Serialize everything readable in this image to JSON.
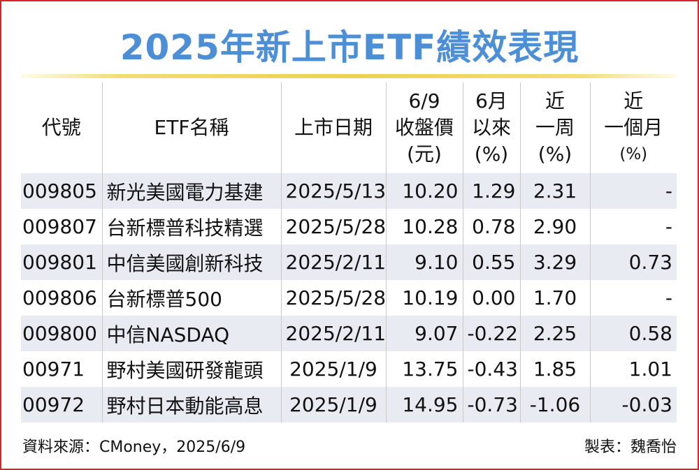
{
  "title": "2025年新上市ETF績效表現",
  "headers": [
    {
      "lines": [
        "代號"
      ]
    },
    {
      "lines": [
        "ETF名稱"
      ]
    },
    {
      "lines": [
        "上市日期"
      ]
    },
    {
      "lines": [
        "6/9",
        "收盤價",
        "(元)"
      ]
    },
    {
      "lines": [
        "6月",
        "以來",
        "(%)"
      ]
    },
    {
      "lines": [
        "近",
        "一周",
        "(%)"
      ]
    },
    {
      "lines": [
        "近",
        "一個月",
        "(%)"
      ]
    }
  ],
  "rows": [
    {
      "code": "009805",
      "name": "新光美國電力基建",
      "date": "2025/5/13",
      "close": "10.20",
      "since_june": "1.29",
      "week": "2.31",
      "month": "-"
    },
    {
      "code": "009807",
      "name": "台新標普科技精選",
      "date": "2025/5/28",
      "close": "10.28",
      "since_june": "0.78",
      "week": "2.90",
      "month": "-"
    },
    {
      "code": "009801",
      "name": "中信美國創新科技",
      "date": "2025/2/11",
      "close": "9.10",
      "since_june": "0.55",
      "week": "3.29",
      "month": "0.73"
    },
    {
      "code": "009806",
      "name": "台新標普500",
      "date": "2025/5/28",
      "close": "10.19",
      "since_june": "0.00",
      "week": "1.70",
      "month": "-"
    },
    {
      "code": "009800",
      "name": "中信NASDAQ",
      "date": "2025/2/11",
      "close": "9.07",
      "since_june": "-0.22",
      "week": "2.25",
      "month": "0.58"
    },
    {
      "code": "00971",
      "name": "野村美國研發龍頭",
      "date": "2025/1/9",
      "close": "13.75",
      "since_june": "-0.43",
      "week": "1.85",
      "month": "1.01"
    },
    {
      "code": "00972",
      "name": "野村日本動能高息",
      "date": "2025/1/9",
      "close": "14.95",
      "since_june": "-0.73",
      "week": "-1.06",
      "month": "-0.03"
    }
  ],
  "footer": {
    "source": "資料來源：CMoney，2025/6/9",
    "credit": "製表：魏喬怡"
  },
  "colors": {
    "title": "#4d8fd6",
    "border": "#d8232a",
    "stripe": "#e8ecf2",
    "rule": "#f0cf52"
  }
}
